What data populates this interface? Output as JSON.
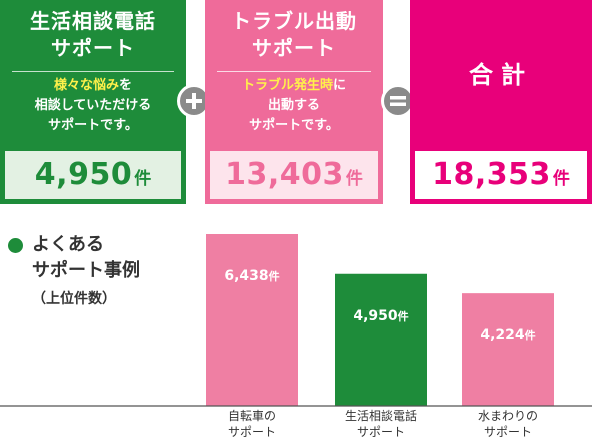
{
  "colors": {
    "green": "#1e8c3a",
    "pink": "#ef6b9a",
    "magenta": "#e8007a",
    "highlight": "#fff14a",
    "operator": "#8a8a8a"
  },
  "panels": {
    "a": {
      "title_lines": [
        "生活相談電話",
        "サポート"
      ],
      "desc_highlight": "様々な悩み",
      "desc_line1_rest": "を",
      "desc_lines": [
        "相談していただける",
        "サポートです。"
      ],
      "count": "4,950",
      "unit": "件"
    },
    "b": {
      "title_lines": [
        "トラブル出動",
        "サポート"
      ],
      "desc_highlight": "トラブル発生時",
      "desc_line1_rest": "に",
      "desc_lines": [
        "出動する",
        "サポートです。"
      ],
      "count": "13,403",
      "unit": "件"
    },
    "c": {
      "title": "合計",
      "count": "18,353",
      "unit": "件"
    }
  },
  "operators": {
    "plus_icon": "plus-icon",
    "equals_icon": "equals-icon"
  },
  "side": {
    "title_lines": [
      "よくある",
      "サポート事例"
    ],
    "subtitle": "（上位件数）"
  },
  "chart_data": {
    "type": "bar",
    "title": "よくあるサポート事例",
    "subtitle": "（上位件数）",
    "categories": [
      [
        "自転車の",
        "サポート"
      ],
      [
        "生活相談電話",
        "サポート"
      ],
      [
        "水まわりの",
        "サポート"
      ]
    ],
    "values": [
      6438,
      4950,
      4224
    ],
    "value_labels": [
      "6,438",
      "4,950",
      "4,224"
    ],
    "unit": "件",
    "bar_colors": [
      "#ef7fa3",
      "#1e8c3a",
      "#ef7fa3"
    ],
    "ylim": [
      0,
      6438
    ],
    "grid": false,
    "legend": "none"
  }
}
